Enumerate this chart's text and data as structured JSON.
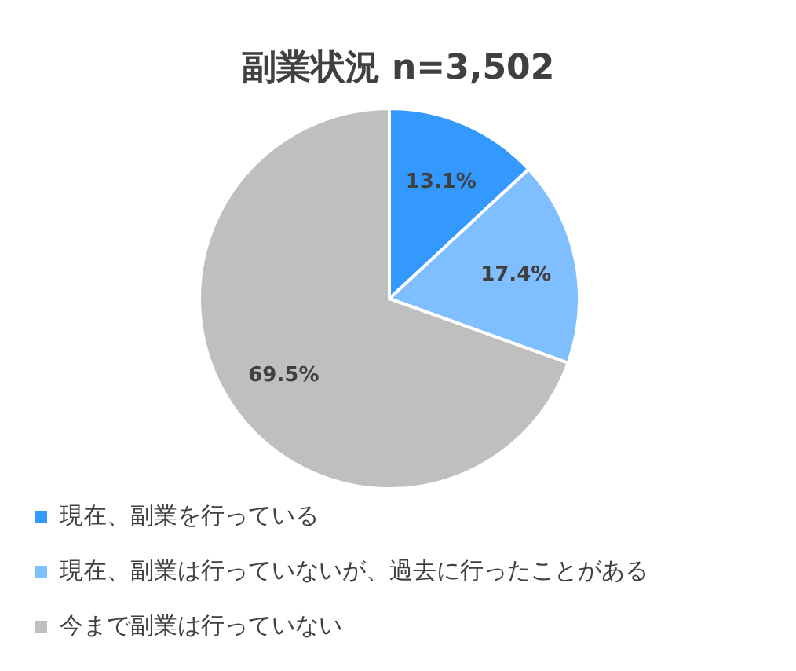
{
  "chart_data": {
    "type": "pie",
    "title": "副業状況 n=3,502",
    "categories": [
      "現在、副業を行っている",
      "現在、副業は行っていないが、過去に行ったことがある",
      "今まで副業は行っていない"
    ],
    "values": [
      13.1,
      17.4,
      69.5
    ],
    "value_labels": [
      "13.1%",
      "17.4%",
      "69.5%"
    ],
    "colors": [
      "#3399ff",
      "#80bfff",
      "#bfbfbf"
    ],
    "legend": "bottom"
  }
}
